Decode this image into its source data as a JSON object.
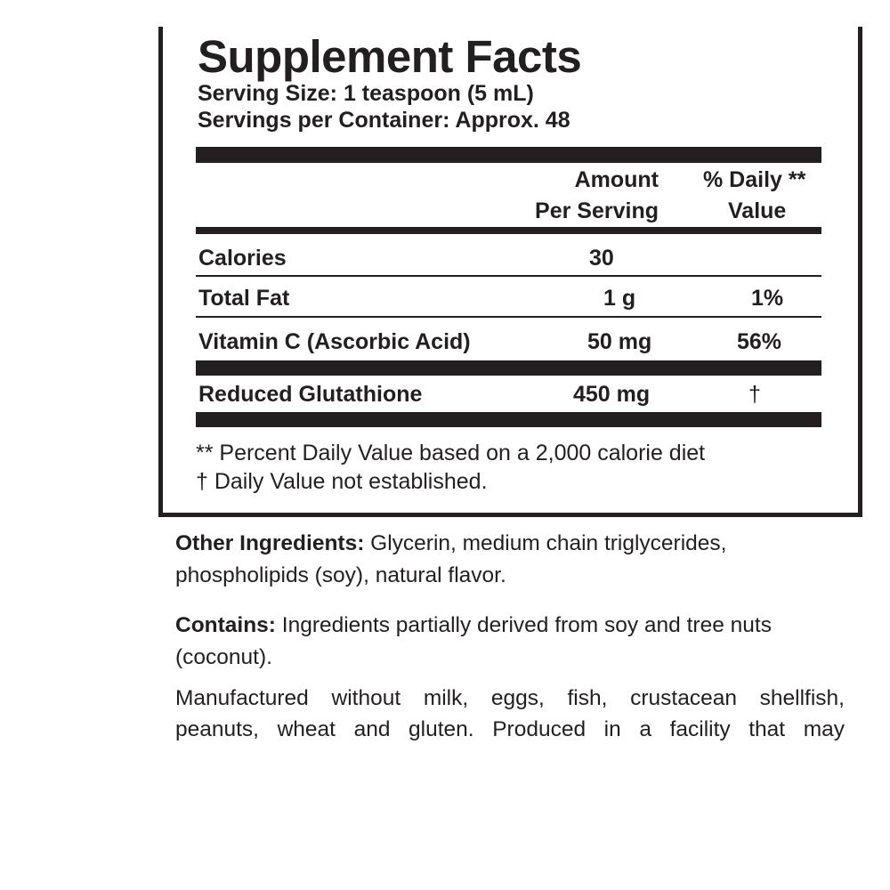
{
  "header": {
    "title": "Supplement Facts",
    "serving_size": "Serving Size: 1 teaspoon (5 mL)",
    "servings_per_container": "Servings per Container: Approx. 48"
  },
  "table": {
    "columns": {
      "amount": [
        "Amount",
        "Per Serving"
      ],
      "daily_value": [
        "% Daily **",
        "Value"
      ]
    },
    "rows": [
      {
        "name": "Calories",
        "amount": "30"
      },
      {
        "name": "Total Fat",
        "amount": "1 g",
        "daily_value": "1%"
      },
      {
        "name": "Vitamin C (Ascorbic Acid)",
        "amount": "50 mg",
        "daily_value": "56%"
      },
      {
        "name": "Reduced Glutathione",
        "amount": "450 mg",
        "daily_value": "†"
      }
    ]
  },
  "footnotes": [
    "** Percent Daily Value based on a 2,000 calorie diet",
    "† Daily Value not established."
  ],
  "other_ingredients": {
    "label": "Other Ingredients:",
    "text": " Glycerin, medium chain triglycerides, phospholipids (soy), natural flavor."
  },
  "contains": {
    "label": "Contains:",
    "text": " Ingredients partially derived from soy and tree nuts (coconut)."
  },
  "manufactured": [
    "Manufactured without milk, eggs, fish, crustacean shellfish,",
    "peanuts, wheat and gluten. Produced in a facility that may"
  ]
}
